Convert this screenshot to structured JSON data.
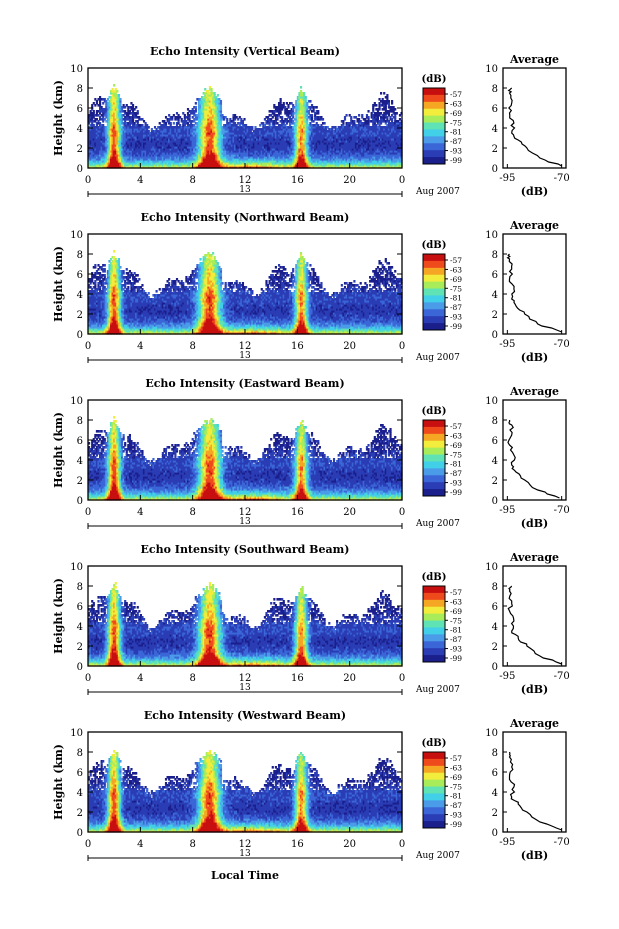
{
  "figure": {
    "date_label": "Aug 2007",
    "xlabel_bottom": "Local Time",
    "colorbar_unit": "(dB)",
    "colorbar_ticks": [
      "-57",
      "-63",
      "-69",
      "-75",
      "-81",
      "-87",
      "-93",
      "-99"
    ],
    "average_title": "Average",
    "average_xlabel": "(dB)",
    "average_xticks": [
      "-95",
      "-70"
    ],
    "ylabel": "Height (km)",
    "xticks": [
      "0",
      "4",
      "8",
      "12",
      "16",
      "20",
      "0"
    ],
    "day_label": "13",
    "colors": [
      "#1a1f8c",
      "#2b3db5",
      "#3a66d8",
      "#4a9be8",
      "#42cfe8",
      "#5fe3b5",
      "#a8ec5a",
      "#f2ec3c",
      "#f5a623",
      "#ee4a1c",
      "#c80f0f"
    ]
  },
  "chart_data": [
    {
      "type": "heatmap",
      "title": "Echo Intensity (Vertical Beam)",
      "x_range": [
        0,
        24
      ],
      "y_range": [
        0,
        10
      ],
      "yticks": [
        0,
        2,
        4,
        6,
        8,
        10
      ],
      "color_range_db": [
        -99,
        -57
      ],
      "average_profile": {
        "height_km": [
          0.2,
          1.0,
          2.0,
          2.8,
          3.5,
          4.5,
          5.5,
          6.5,
          7.5,
          8.0
        ],
        "db": [
          -70,
          -80,
          -86,
          -90,
          -93,
          -92,
          -94,
          -93,
          -94,
          -93
        ]
      }
    },
    {
      "type": "heatmap",
      "title": "Echo Intensity (Northward Beam)",
      "x_range": [
        0,
        24
      ],
      "y_range": [
        0,
        10
      ],
      "yticks": [
        0,
        2,
        4,
        6,
        8,
        10
      ],
      "color_range_db": [
        -99,
        -57
      ],
      "average_profile": {
        "height_km": [
          0.2,
          1.0,
          2.0,
          2.8,
          3.5,
          4.5,
          5.5,
          6.5,
          7.5,
          8.0
        ],
        "db": [
          -70,
          -81,
          -87,
          -91,
          -93,
          -92,
          -94,
          -93,
          -94,
          -94
        ]
      }
    },
    {
      "type": "heatmap",
      "title": "Echo Intensity (Eastward Beam)",
      "x_range": [
        0,
        24
      ],
      "y_range": [
        0,
        10
      ],
      "yticks": [
        0,
        2,
        4,
        6,
        8,
        10
      ],
      "color_range_db": [
        -99,
        -57
      ],
      "average_profile": {
        "height_km": [
          0.2,
          1.0,
          2.0,
          2.8,
          3.5,
          4.5,
          5.5,
          6.5,
          7.5,
          8.0
        ],
        "db": [
          -71,
          -81,
          -87,
          -91,
          -93,
          -92,
          -94,
          -93,
          -93,
          -94
        ]
      }
    },
    {
      "type": "heatmap",
      "title": "Echo Intensity (Southward Beam)",
      "x_range": [
        0,
        24
      ],
      "y_range": [
        0,
        10
      ],
      "yticks": [
        0,
        2,
        4,
        6,
        8,
        10
      ],
      "color_range_db": [
        -99,
        -57
      ],
      "average_profile": {
        "height_km": [
          0.2,
          1.0,
          2.0,
          2.8,
          3.5,
          4.5,
          5.5,
          6.5,
          7.5,
          8.0
        ],
        "db": [
          -70,
          -80,
          -86,
          -90,
          -93,
          -92,
          -94,
          -93,
          -94,
          -93
        ]
      }
    },
    {
      "type": "heatmap",
      "title": "Echo Intensity (Westward Beam)",
      "x_range": [
        0,
        24
      ],
      "y_range": [
        0,
        10
      ],
      "yticks": [
        0,
        2,
        4,
        6,
        8,
        10
      ],
      "color_range_db": [
        -99,
        -57
      ],
      "average_profile": {
        "height_km": [
          0.2,
          1.0,
          2.0,
          2.8,
          3.5,
          4.5,
          5.5,
          6.5,
          7.5,
          8.0
        ],
        "db": [
          -70,
          -80,
          -86,
          -90,
          -93,
          -92,
          -94,
          -93,
          -94,
          -94
        ]
      }
    }
  ]
}
